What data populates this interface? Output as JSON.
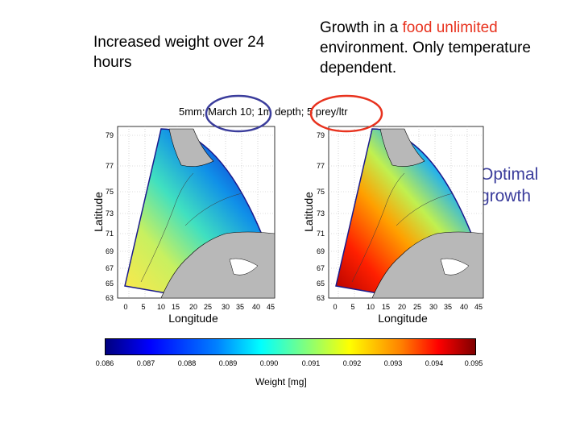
{
  "notes": {
    "left": "Increased weight over 24 hours",
    "right_prefix": "Growth in a ",
    "right_highlight": "food unlimited",
    "right_suffix": " environment.  Only temperature dependent.",
    "optimal": "Optimal growth"
  },
  "map_title": "5mm; March 10; 1m depth; 5 prey/ltr",
  "panels": [
    {
      "name": "left-map",
      "xlabel": "Longitude",
      "ylabel": "Latitude"
    },
    {
      "name": "right-map",
      "xlabel": "Longitude",
      "ylabel": "Latitude"
    }
  ],
  "axes": {
    "lat_ticks": [
      "79",
      "77",
      "75",
      "73",
      "71",
      "69",
      "67",
      "65",
      "63"
    ],
    "lon_ticks": [
      "0",
      "5",
      "10",
      "15",
      "20",
      "25",
      "30",
      "35",
      "40",
      "45"
    ]
  },
  "colorbar": {
    "label": "Weight [mg]",
    "ticks": [
      "0.086",
      "0.087",
      "0.088",
      "0.089",
      "0.090",
      "0.091",
      "0.092",
      "0.093",
      "0.094",
      "0.095"
    ],
    "colors": [
      "#00007f",
      "#0000ff",
      "#0080ff",
      "#00ffff",
      "#7fff7f",
      "#ffff00",
      "#ff8000",
      "#ff0000",
      "#7f0000"
    ]
  },
  "annotation_colors": {
    "blue_circle": "#3b3d9c",
    "red_circle": "#e8321e"
  }
}
